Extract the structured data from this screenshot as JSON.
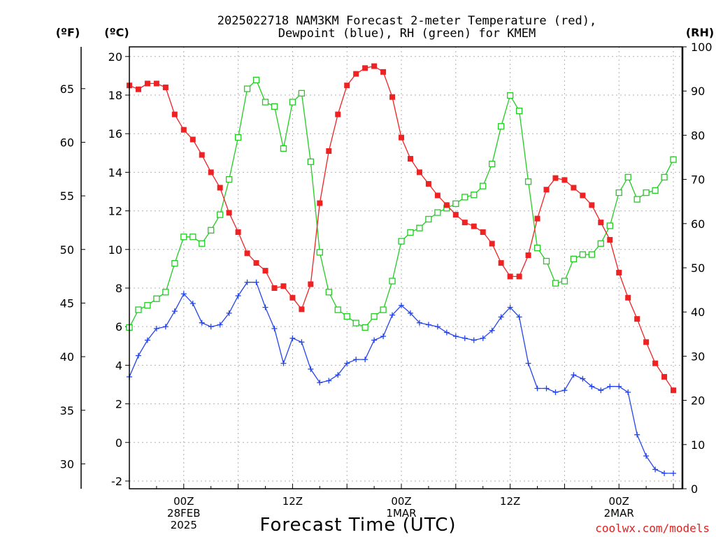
{
  "chart_data": {
    "type": "line",
    "title_lines": [
      "2025022718 NAM3KM Forecast 2-meter Temperature (red),",
      "Dewpoint (blue), RH (green) for KMEM"
    ],
    "xlabel": "Forecast Time (UTC)",
    "credit": "coolwx.com/models",
    "units": {
      "fahrenheit": "(ºF)",
      "celsius": "(ºC)",
      "rh": "(RH)"
    },
    "x_range_hours": [
      0,
      61
    ],
    "x_ticks": [
      {
        "hour": 6,
        "lines": [
          "00Z",
          "28FEB",
          "2025"
        ]
      },
      {
        "hour": 18,
        "lines": [
          "12Z"
        ]
      },
      {
        "hour": 30,
        "lines": [
          "00Z",
          "1MAR"
        ]
      },
      {
        "hour": 42,
        "lines": [
          "12Z"
        ]
      },
      {
        "hour": 54,
        "lines": [
          "00Z",
          "2MAR"
        ]
      }
    ],
    "celsius_axis": {
      "min": -2.4,
      "max": 20.5,
      "ticks": [
        "-2",
        "0",
        "2",
        "4",
        "6",
        "8",
        "10",
        "12",
        "14",
        "16",
        "18",
        "20"
      ]
    },
    "fahrenheit_axis": {
      "min": 27.68,
      "max": 68.9,
      "ticks": [
        "30",
        "35",
        "40",
        "45",
        "50",
        "55",
        "60",
        "65"
      ]
    },
    "rh_axis": {
      "min": 0,
      "max": 100,
      "ticks": [
        "0",
        "10",
        "20",
        "30",
        "40",
        "50",
        "60",
        "70",
        "80",
        "90",
        "100"
      ]
    },
    "colors": {
      "temperature": "#ee2222",
      "dewpoint": "#2244ee",
      "rh": "#22cc22",
      "credit": "#e02020"
    },
    "series": [
      {
        "name": "2-meter Temperature (red)",
        "axis": "celsius",
        "marker": "filled-square",
        "values": [
          18.5,
          18.3,
          18.6,
          18.6,
          18.4,
          17.0,
          16.2,
          15.7,
          14.9,
          14.0,
          13.2,
          11.9,
          10.9,
          9.8,
          9.3,
          8.9,
          8.0,
          8.1,
          7.5,
          6.9,
          8.2,
          12.4,
          15.1,
          17.0,
          18.5,
          19.1,
          19.4,
          19.5,
          19.2,
          17.9,
          15.8,
          14.7,
          14.0,
          13.4,
          12.8,
          12.3,
          11.8,
          11.4,
          11.2,
          10.9,
          10.3,
          9.3,
          8.6,
          8.6,
          9.7,
          11.6,
          13.1,
          13.7,
          13.6,
          13.2,
          12.8,
          12.3,
          11.4,
          10.5,
          8.8,
          7.5,
          6.4,
          5.2,
          4.1,
          3.4,
          2.7
        ]
      },
      {
        "name": "Dewpoint (blue)",
        "axis": "celsius",
        "marker": "plus",
        "values": [
          3.4,
          4.5,
          5.3,
          5.9,
          6.0,
          6.8,
          7.7,
          7.2,
          6.2,
          6.0,
          6.1,
          6.7,
          7.6,
          8.3,
          8.3,
          7.0,
          5.9,
          4.1,
          5.4,
          5.2,
          3.8,
          3.1,
          3.2,
          3.5,
          4.1,
          4.3,
          4.3,
          5.3,
          5.5,
          6.6,
          7.1,
          6.7,
          6.2,
          6.1,
          6.0,
          5.7,
          5.5,
          5.4,
          5.3,
          5.4,
          5.8,
          6.5,
          7.0,
          6.5,
          4.1,
          2.8,
          2.8,
          2.6,
          2.7,
          3.5,
          3.3,
          2.9,
          2.7,
          2.9,
          2.9,
          2.6,
          0.4,
          -0.7,
          -1.4,
          -1.6,
          -1.6
        ]
      },
      {
        "name": "RH (green)",
        "axis": "rh",
        "marker": "open-square",
        "values": [
          36.5,
          40.5,
          41.5,
          43,
          44.5,
          51,
          57,
          57,
          55.5,
          58.5,
          62,
          70,
          79.5,
          90.5,
          92.5,
          87.5,
          86.5,
          77,
          87.5,
          89.5,
          74,
          53.5,
          44.5,
          40.5,
          39,
          37.5,
          36.5,
          39,
          40.5,
          47,
          56,
          58,
          59,
          61,
          62.5,
          63.5,
          64.5,
          66,
          66.5,
          68.5,
          73.5,
          82,
          89,
          85.5,
          69.5,
          54.5,
          51.5,
          46.5,
          47,
          52,
          53,
          53,
          55.5,
          59.5,
          67,
          70.5,
          65.5,
          67,
          67.5,
          70.5,
          74.5
        ]
      }
    ]
  }
}
